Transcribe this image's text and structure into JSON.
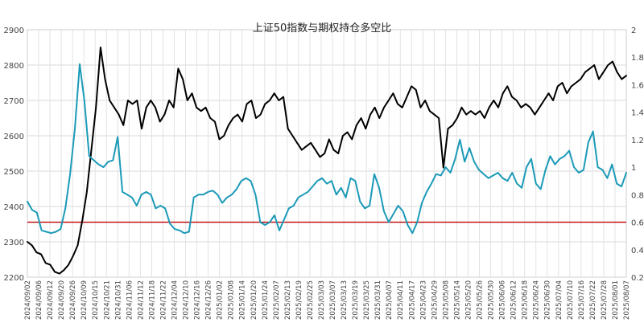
{
  "chart_data": {
    "type": "line",
    "title": "上证50指数与期权持仓多空比",
    "xlabel": "",
    "ylabel": "",
    "grid": true,
    "legend": "none",
    "x_tick_labels": [
      "2024/09/02",
      "2024/09/06",
      "2024/09/12",
      "2024/09/20",
      "2024/09/26",
      "2024/10/09",
      "2024/10/15",
      "2024/10/21",
      "2024/10/31",
      "2024/11/06",
      "2024/11/12",
      "2024/11/18",
      "2024/11/22",
      "2024/12/04",
      "2024/12/10",
      "2024/12/16",
      "2024/12/26",
      "2025/01/02",
      "2025/01/08",
      "2025/01/14",
      "2025/01/20",
      "2025/01/24",
      "2025/02/07",
      "2025/02/13",
      "2025/02/19",
      "2025/02/25",
      "2025/03/03",
      "2025/03/07",
      "2025/03/13",
      "2025/03/19",
      "2025/03/25",
      "2025/03/31",
      "2025/04/07",
      "2025/04/11",
      "2025/04/17",
      "2025/04/23",
      "2025/04/29",
      "2025/05/08",
      "2025/05/14",
      "2025/05/20",
      "2025/05/26",
      "2025/05/30",
      "2025/06/06",
      "2025/06/12",
      "2025/06/18",
      "2025/06/24",
      "2025/06/30",
      "2025/07/04",
      "2025/07/10",
      "2025/07/16",
      "2025/07/22",
      "2025/07/28",
      "2025/08/01",
      "2025/08/07"
    ],
    "y_left": {
      "min": 2200,
      "max": 2900,
      "ticks": [
        2200,
        2300,
        2400,
        2500,
        2600,
        2700,
        2800,
        2900
      ]
    },
    "y_right": {
      "min": 0.2,
      "max": 2,
      "ticks": [
        "0.2",
        "0.4",
        "0.6",
        "0.8",
        "1",
        "1.2",
        "1.4",
        "1.6",
        "1.8",
        "2"
      ]
    },
    "reference_line": {
      "axis": "right",
      "value": 0.6,
      "color": "#c00000"
    },
    "series": [
      {
        "axis": "left",
        "color": "#000000",
        "values": [
          2300,
          2290,
          2270,
          2265,
          2240,
          2235,
          2215,
          2210,
          2220,
          2235,
          2260,
          2290,
          2360,
          2440,
          2560,
          2680,
          2850,
          2760,
          2700,
          2680,
          2660,
          2630,
          2700,
          2690,
          2700,
          2620,
          2680,
          2700,
          2680,
          2640,
          2660,
          2700,
          2680,
          2790,
          2760,
          2700,
          2720,
          2680,
          2670,
          2680,
          2650,
          2640,
          2590,
          2600,
          2630,
          2650,
          2660,
          2640,
          2690,
          2700,
          2650,
          2660,
          2690,
          2700,
          2720,
          2700,
          2710,
          2620,
          2600,
          2580,
          2560,
          2570,
          2580,
          2560,
          2540,
          2550,
          2590,
          2560,
          2550,
          2600,
          2610,
          2590,
          2630,
          2650,
          2620,
          2660,
          2680,
          2650,
          2680,
          2700,
          2720,
          2690,
          2680,
          2710,
          2740,
          2730,
          2680,
          2700,
          2670,
          2660,
          2650,
          2510,
          2620,
          2630,
          2650,
          2680,
          2660,
          2670,
          2660,
          2670,
          2650,
          2680,
          2700,
          2680,
          2720,
          2740,
          2710,
          2700,
          2680,
          2690,
          2680,
          2660,
          2680,
          2700,
          2720,
          2700,
          2740,
          2750,
          2720,
          2740,
          2750,
          2760,
          2780,
          2790,
          2800,
          2760,
          2780,
          2800,
          2810,
          2780,
          2760,
          2770
        ]
      },
      {
        "axis": "right",
        "color": "#1b9ab8",
        "values": [
          0.75,
          0.69,
          0.67,
          0.54,
          0.53,
          0.52,
          0.53,
          0.55,
          0.7,
          0.95,
          1.28,
          1.75,
          1.48,
          1.08,
          1.05,
          1.02,
          1.0,
          1.04,
          1.05,
          1.22,
          0.82,
          0.8,
          0.78,
          0.72,
          0.8,
          0.82,
          0.8,
          0.7,
          0.72,
          0.7,
          0.59,
          0.55,
          0.54,
          0.52,
          0.53,
          0.78,
          0.8,
          0.8,
          0.82,
          0.83,
          0.8,
          0.74,
          0.78,
          0.8,
          0.84,
          0.9,
          0.92,
          0.9,
          0.8,
          0.6,
          0.58,
          0.6,
          0.65,
          0.54,
          0.62,
          0.7,
          0.72,
          0.78,
          0.8,
          0.82,
          0.86,
          0.9,
          0.92,
          0.88,
          0.9,
          0.8,
          0.85,
          0.78,
          0.92,
          0.9,
          0.75,
          0.7,
          0.72,
          0.95,
          0.85,
          0.68,
          0.6,
          0.66,
          0.72,
          0.68,
          0.58,
          0.52,
          0.6,
          0.74,
          0.82,
          0.88,
          0.95,
          0.94,
          1.0,
          0.96,
          1.06,
          1.2,
          1.04,
          1.14,
          1.04,
          0.98,
          0.95,
          0.92,
          0.94,
          0.96,
          0.92,
          0.9,
          0.96,
          0.88,
          0.85,
          1.0,
          1.06,
          0.88,
          0.84,
          0.98,
          1.08,
          1.02,
          1.06,
          1.08,
          1.12,
          1.0,
          0.96,
          0.98,
          1.18,
          1.26,
          1.0,
          0.98,
          0.92,
          1.02,
          0.88,
          0.86,
          0.96
        ]
      }
    ]
  }
}
